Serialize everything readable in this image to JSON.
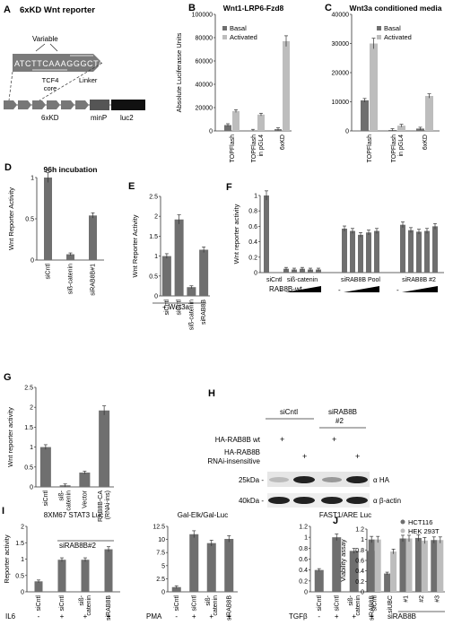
{
  "colors": {
    "dark": "#6f6f6f",
    "light": "#bdbdbd",
    "axis": "#333333"
  },
  "panelA": {
    "letter": "A",
    "title": "6xKD Wnt reporter",
    "variable": "Variable",
    "seq_a": "ATCT",
    "seq_b": "TCAAAG",
    "seq_c": "GGCTA",
    "tcf4": "TCF4",
    "core": "core",
    "linker": "Linker",
    "lab_6xkd": "6xKD",
    "lab_minp": "minP",
    "lab_luc2": "luc2"
  },
  "chart_data": [
    {
      "id": "B",
      "letter": "B",
      "type": "bar",
      "title": "Wnt1-LRP6-Fzd8",
      "ylabel": "Absolute Luciferasse Units",
      "ylim": [
        0,
        100000
      ],
      "yticks": [
        "0",
        "20000",
        "40000",
        "60000",
        "80000",
        "100000"
      ],
      "legend": [
        "Basal",
        "Activated"
      ],
      "legend_position": "top-left",
      "categories": [
        "TOPFlash",
        "TOPFlash in pGL4",
        "6xKD"
      ],
      "series": [
        {
          "name": "Basal",
          "values": [
            5000,
            200,
            1500
          ]
        },
        {
          "name": "Activated",
          "values": [
            17000,
            14000,
            77000
          ]
        }
      ]
    },
    {
      "id": "C",
      "letter": "C",
      "type": "bar",
      "title": "Wnt3a conditioned media",
      "ylim": [
        0,
        40000
      ],
      "yticks": [
        "0",
        "10000",
        "20000",
        "30000",
        "40000"
      ],
      "legend": [
        "Basal",
        "Activated"
      ],
      "legend_position": "top-right",
      "categories": [
        "TOPFlash",
        "TOPFlash in pGL4",
        "6xKD"
      ],
      "series": [
        {
          "name": "Basal",
          "values": [
            10500,
            300,
            800
          ]
        },
        {
          "name": "Activated",
          "values": [
            30000,
            1800,
            12000
          ]
        }
      ]
    },
    {
      "id": "D",
      "letter": "D",
      "type": "bar",
      "title": "96h incubation",
      "ylabel": "Wnt Reporter Activity",
      "ylim": [
        0,
        1
      ],
      "yticks": [
        "0",
        "0.5",
        "1"
      ],
      "categories": [
        "siCntl",
        "siß-catenin",
        "siRAB8B#1"
      ],
      "values": [
        1,
        0.07,
        0.54
      ]
    },
    {
      "id": "E",
      "letter": "E",
      "type": "bar",
      "ylabel": "Wnt Reporter Activity",
      "ylim": [
        0,
        2.5
      ],
      "yticks": [
        "0",
        "0.5",
        "1",
        "1.5",
        "2",
        "2.5"
      ],
      "xnote": "+ Wnt3a",
      "categories": [
        "siCntl",
        "siCntl",
        "siß-catenin",
        "siRAB8B"
      ],
      "values": [
        1,
        1.92,
        0.22,
        1.16
      ]
    },
    {
      "id": "F",
      "letter": "F",
      "type": "bar",
      "ylabel": "Wnt reporter activity",
      "ylim": [
        0,
        1
      ],
      "yticks": [
        "0",
        "0.2",
        "0.4",
        "0.6",
        "0.8",
        "1"
      ],
      "groups": [
        "siCntl",
        "siß-catenin",
        "siRAB8B Pool",
        "siRAB8B #2"
      ],
      "values": [
        1,
        0.05,
        0.04,
        0.05,
        0.04,
        0.04,
        0.57,
        0.54,
        0.49,
        0.52,
        0.54,
        0.62,
        0.55,
        0.53,
        0.54,
        0.6
      ],
      "rowlabel": "RAB8B-wt"
    },
    {
      "id": "G",
      "letter": "G",
      "type": "bar",
      "ylabel": "Wnt reporter activity",
      "ylim": [
        0,
        2.5
      ],
      "yticks": [
        "0",
        "0.5",
        "1",
        "1.5",
        "2",
        "2.5"
      ],
      "categories": [
        "siCntl",
        "siß-catenin",
        "Vector",
        "RAB8B-CA (RNAi-ins)"
      ],
      "values": [
        1,
        0.04,
        0.36,
        1.92
      ],
      "group_label": "siRAB8B#2"
    },
    {
      "id": "I1",
      "letter": "I",
      "type": "bar",
      "title": "8XM67 STAT3 Luc",
      "ylabel": "Reporter activity",
      "ylim": [
        0,
        2
      ],
      "yticks": [
        "0",
        "0.5",
        "1",
        "1.5",
        "2"
      ],
      "treat": "IL6",
      "categories": [
        "siCntl",
        "siCntl",
        "siß-catenin",
        "siRAB8B"
      ],
      "signs": [
        "-",
        "+",
        "+",
        "+"
      ],
      "values": [
        0.32,
        0.98,
        0.98,
        1.3
      ]
    },
    {
      "id": "I2",
      "type": "bar",
      "title": "Gal-Elk/Gal-Luc",
      "ylim": [
        0,
        12.5
      ],
      "yticks": [
        "0",
        "2.5",
        "5",
        "7.5",
        "10",
        "12.5"
      ],
      "treat": "PMA",
      "categories": [
        "siCntl",
        "siCntl",
        "siß-catenin",
        "siRAB8B"
      ],
      "signs": [
        "-",
        "+",
        "+",
        "+"
      ],
      "values": [
        0.9,
        11,
        9.3,
        10.1
      ]
    },
    {
      "id": "I3",
      "type": "bar",
      "title": "FAST1/ARE Luc",
      "ylim": [
        0,
        1.2
      ],
      "yticks": [
        "0",
        "0.2",
        "0.4",
        "0.6",
        "0.8",
        "1",
        "1.2"
      ],
      "treat": "TGFβ",
      "categories": [
        "siCntl",
        "siCntl",
        "siß-catenin",
        "siRAB8B"
      ],
      "signs": [
        "-",
        "+",
        "+",
        "+"
      ],
      "values": [
        0.4,
        1,
        0.75,
        0.75
      ]
    },
    {
      "id": "J",
      "letter": "J",
      "type": "bar",
      "ylabel": "Viability assay",
      "ylim": [
        0,
        1.2
      ],
      "yticks": [
        "0",
        "0.2",
        "0.4",
        "0.6",
        "0.8",
        "1",
        "1.2"
      ],
      "legend": [
        "HCT116",
        "HEK 293T"
      ],
      "legend_position": "top-right",
      "categories": [
        "siCntl",
        "siUBC",
        "#1",
        "#2",
        "#3"
      ],
      "group_label": "siRAB8B",
      "series": [
        {
          "name": "HCT116",
          "values": [
            1,
            0.35,
            1.02,
            1.03,
            0.99
          ]
        },
        {
          "name": "HEK 293T",
          "values": [
            1,
            0.77,
            1.02,
            0.98,
            0.99
          ]
        }
      ]
    }
  ],
  "panelH": {
    "letter": "H",
    "col1": "siCntl",
    "col2": "siRAB8B",
    "col2b": "#2",
    "row1": "HA-RAB8B wt",
    "row2a": "HA-RAB8B",
    "row2b": "RNAi-insensitive",
    "plus": "+",
    "kda25": "25kDa -",
    "kda40": "40kDa -",
    "ab1": "α HA",
    "ab2": "α β-actin"
  }
}
